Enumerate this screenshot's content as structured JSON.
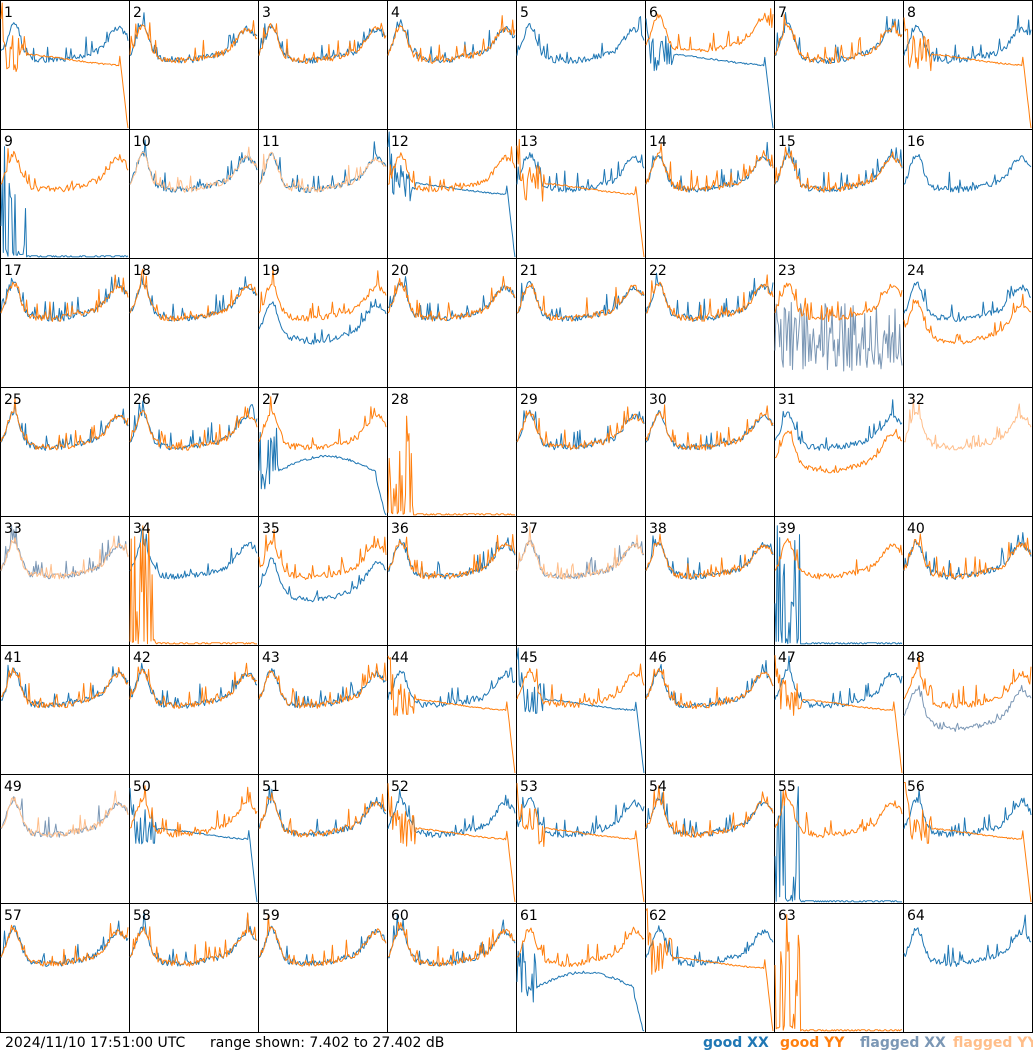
{
  "timestamp": "2024/11/10 17:51:00 UTC",
  "range_label": "range shown: 7.402 to 27.402 dB",
  "legend": [
    {
      "label": "good XX",
      "color": "#1f77b4"
    },
    {
      "label": "good YY",
      "color": "#ff7f0e"
    },
    {
      "label": "flagged XX",
      "color": "#7b97b5"
    },
    {
      "label": "flagged YY",
      "color": "#ffbe8a"
    }
  ],
  "colors": {
    "good_xx": "#1f77b4",
    "good_yy": "#ff7f0e",
    "flagged_xx": "#7b97b5",
    "flagged_yy": "#ffbe8a"
  },
  "chart_data": {
    "type": "line",
    "layout": "8x8 small multiples",
    "y_range_db": [
      7.402,
      27.402
    ],
    "panels": [
      {
        "id": 1,
        "xx": "mid",
        "yy": "drop"
      },
      {
        "id": 2,
        "xx": "mid",
        "yy": "mid"
      },
      {
        "id": 3,
        "xx": "mid",
        "yy": "mid"
      },
      {
        "id": 4,
        "xx": "mid",
        "yy": "mid"
      },
      {
        "id": 5,
        "xx": "mid",
        "yy": "none"
      },
      {
        "id": 6,
        "xx": "drop",
        "yy": "high"
      },
      {
        "id": 7,
        "xx": "mid",
        "yy": "mid"
      },
      {
        "id": 8,
        "xx": "mid",
        "yy": "drop"
      },
      {
        "id": 9,
        "xx": "dead",
        "yy": "mid"
      },
      {
        "id": 10,
        "xx": "mid",
        "yy": "mid",
        "flagged_yy": true
      },
      {
        "id": 11,
        "xx": "mid",
        "yy": "mid",
        "flagged_yy": true
      },
      {
        "id": 12,
        "xx": "drop",
        "yy": "mid"
      },
      {
        "id": 13,
        "xx": "mid",
        "yy": "drop"
      },
      {
        "id": 14,
        "xx": "mid",
        "yy": "mid"
      },
      {
        "id": 15,
        "xx": "mid",
        "yy": "mid"
      },
      {
        "id": 16,
        "xx": "mid",
        "yy": "none"
      },
      {
        "id": 17,
        "xx": "mid",
        "yy": "mid"
      },
      {
        "id": 18,
        "xx": "mid",
        "yy": "mid"
      },
      {
        "id": 19,
        "xx": "low",
        "yy": "mid"
      },
      {
        "id": 20,
        "xx": "mid",
        "yy": "mid"
      },
      {
        "id": 21,
        "xx": "mid",
        "yy": "mid"
      },
      {
        "id": 22,
        "xx": "mid",
        "yy": "mid"
      },
      {
        "id": 23,
        "xx": "noisy",
        "yy": "mid",
        "flagged_xx": true
      },
      {
        "id": 24,
        "xx": "mid",
        "yy": "low"
      },
      {
        "id": 25,
        "xx": "mid",
        "yy": "mid"
      },
      {
        "id": 26,
        "xx": "mid",
        "yy": "mid"
      },
      {
        "id": 27,
        "xx": "hump",
        "yy": "mid"
      },
      {
        "id": 28,
        "xx": "none",
        "yy": "dead"
      },
      {
        "id": 29,
        "xx": "mid",
        "yy": "mid"
      },
      {
        "id": 30,
        "xx": "mid",
        "yy": "mid"
      },
      {
        "id": 31,
        "xx": "mid",
        "yy": "low"
      },
      {
        "id": 32,
        "xx": "none",
        "yy": "mid",
        "flagged_yy": true
      },
      {
        "id": 33,
        "xx": "mid",
        "yy": "mid",
        "flagged_xx": true,
        "flagged_yy": true
      },
      {
        "id": 34,
        "xx": "mid",
        "yy": "dead"
      },
      {
        "id": 35,
        "xx": "low",
        "yy": "mid"
      },
      {
        "id": 36,
        "xx": "mid",
        "yy": "mid"
      },
      {
        "id": 37,
        "xx": "mid",
        "yy": "mid",
        "flagged_xx": true,
        "flagged_yy": true
      },
      {
        "id": 38,
        "xx": "mid",
        "yy": "mid"
      },
      {
        "id": 39,
        "xx": "dead",
        "yy": "mid"
      },
      {
        "id": 40,
        "xx": "mid",
        "yy": "mid"
      },
      {
        "id": 41,
        "xx": "mid",
        "yy": "mid"
      },
      {
        "id": 42,
        "xx": "mid",
        "yy": "mid"
      },
      {
        "id": 43,
        "xx": "mid",
        "yy": "mid"
      },
      {
        "id": 44,
        "xx": "mid",
        "yy": "drop"
      },
      {
        "id": 45,
        "xx": "drop",
        "yy": "mid"
      },
      {
        "id": 46,
        "xx": "mid",
        "yy": "mid"
      },
      {
        "id": 47,
        "xx": "mid",
        "yy": "drop"
      },
      {
        "id": 48,
        "xx": "low",
        "yy": "mid",
        "flagged_xx": true
      },
      {
        "id": 49,
        "xx": "mid",
        "yy": "mid",
        "flagged_xx": true,
        "flagged_yy": true
      },
      {
        "id": 50,
        "xx": "drop",
        "yy": "mid"
      },
      {
        "id": 51,
        "xx": "mid",
        "yy": "mid"
      },
      {
        "id": 52,
        "xx": "mid",
        "yy": "drop"
      },
      {
        "id": 53,
        "xx": "mid",
        "yy": "drop"
      },
      {
        "id": 54,
        "xx": "mid",
        "yy": "mid"
      },
      {
        "id": 55,
        "xx": "dead",
        "yy": "mid"
      },
      {
        "id": 56,
        "xx": "mid",
        "yy": "drop"
      },
      {
        "id": 57,
        "xx": "mid",
        "yy": "mid"
      },
      {
        "id": 58,
        "xx": "mid",
        "yy": "mid"
      },
      {
        "id": 59,
        "xx": "mid",
        "yy": "mid"
      },
      {
        "id": 60,
        "xx": "mid",
        "yy": "mid"
      },
      {
        "id": 61,
        "xx": "hump",
        "yy": "mid"
      },
      {
        "id": 62,
        "xx": "mid",
        "yy": "drop"
      },
      {
        "id": 63,
        "xx": "none",
        "yy": "dead"
      },
      {
        "id": 64,
        "xx": "mid",
        "yy": "none"
      }
    ]
  }
}
